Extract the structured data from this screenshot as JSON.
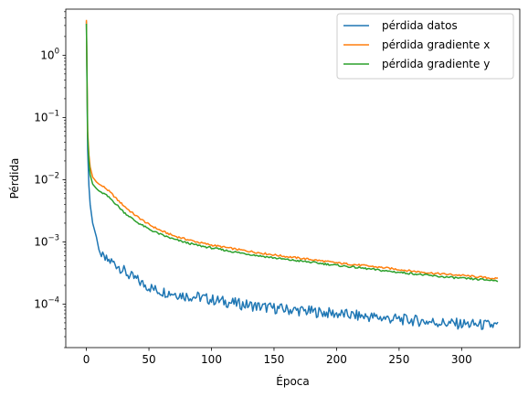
{
  "chart_data": {
    "type": "line",
    "xlabel": "Época",
    "ylabel": "Pérdida",
    "yscale": "log",
    "xlim": [
      -16.5,
      346.5
    ],
    "ylim": [
      2e-05,
      5.5
    ],
    "xticks": [
      0,
      50,
      100,
      150,
      200,
      250,
      300
    ],
    "xtick_labels": [
      "0",
      "50",
      "100",
      "150",
      "200",
      "250",
      "300"
    ],
    "yticks": [
      0.0001,
      0.001,
      0.01,
      0.1,
      1
    ],
    "ytick_base": "10",
    "ytick_exponents": [
      "−4",
      "−3",
      "−2",
      "−1",
      "0"
    ],
    "grid": false,
    "legend_position": "top-right",
    "series": [
      {
        "name": "pérdida datos",
        "color": "#1f77b4",
        "x": [
          0,
          1,
          2,
          3,
          5,
          8,
          10,
          12,
          15,
          20,
          25,
          30,
          35,
          40,
          45,
          50,
          55,
          60,
          70,
          80,
          90,
          100,
          110,
          120,
          130,
          140,
          150,
          160,
          170,
          180,
          190,
          200,
          210,
          220,
          230,
          240,
          250,
          260,
          270,
          280,
          290,
          300,
          310,
          320,
          329
        ],
        "y": [
          3.5,
          0.03,
          0.008,
          0.004,
          0.002,
          0.0012,
          0.00075,
          0.00058,
          0.00052,
          0.00048,
          0.00042,
          0.00034,
          0.00028,
          0.00025,
          0.00021,
          0.00019,
          0.00017,
          0.00016,
          0.00015,
          0.000135,
          0.00013,
          0.000118,
          0.00011,
          0.000102,
          9.6e-05,
          9e-05,
          8.6e-05,
          8.2e-05,
          7.9e-05,
          7.6e-05,
          7.3e-05,
          7e-05,
          6.7e-05,
          6.4e-05,
          6.2e-05,
          5.9e-05,
          5.7e-05,
          5.5e-05,
          5.3e-05,
          5.1e-05,
          4.9e-05,
          4.8e-05,
          4.7e-05,
          4.6e-05,
          4.5e-05
        ]
      },
      {
        "name": "pérdida gradiente x",
        "color": "#ff7f0e",
        "x": [
          0,
          1,
          2,
          3,
          5,
          8,
          10,
          15,
          20,
          25,
          30,
          35,
          40,
          50,
          60,
          70,
          80,
          90,
          100,
          120,
          140,
          160,
          180,
          200,
          220,
          240,
          260,
          280,
          300,
          320,
          329
        ],
        "y": [
          3.7,
          0.06,
          0.025,
          0.016,
          0.011,
          0.0092,
          0.0085,
          0.0074,
          0.006,
          0.0047,
          0.0038,
          0.0031,
          0.0026,
          0.0019,
          0.0015,
          0.00125,
          0.0011,
          0.00098,
          0.00089,
          0.00076,
          0.00066,
          0.00058,
          0.00052,
          0.00046,
          0.00042,
          0.00038,
          0.00034,
          0.00031,
          0.00029,
          0.000265,
          0.000255
        ]
      },
      {
        "name": "pérdida gradiente y",
        "color": "#2ca02c",
        "x": [
          0,
          1,
          2,
          3,
          5,
          8,
          10,
          15,
          20,
          25,
          30,
          35,
          40,
          50,
          60,
          70,
          80,
          90,
          100,
          120,
          140,
          160,
          180,
          200,
          220,
          240,
          260,
          280,
          300,
          320,
          329
        ],
        "y": [
          3.2,
          0.05,
          0.02,
          0.012,
          0.0085,
          0.0072,
          0.0066,
          0.0058,
          0.0048,
          0.0038,
          0.003,
          0.0025,
          0.0021,
          0.0016,
          0.0013,
          0.0011,
          0.00097,
          0.00087,
          0.0008,
          0.00068,
          0.00059,
          0.00052,
          0.00047,
          0.00042,
          0.00038,
          0.00034,
          0.00031,
          0.00028,
          0.00026,
          0.000245,
          0.000238
        ]
      }
    ]
  }
}
